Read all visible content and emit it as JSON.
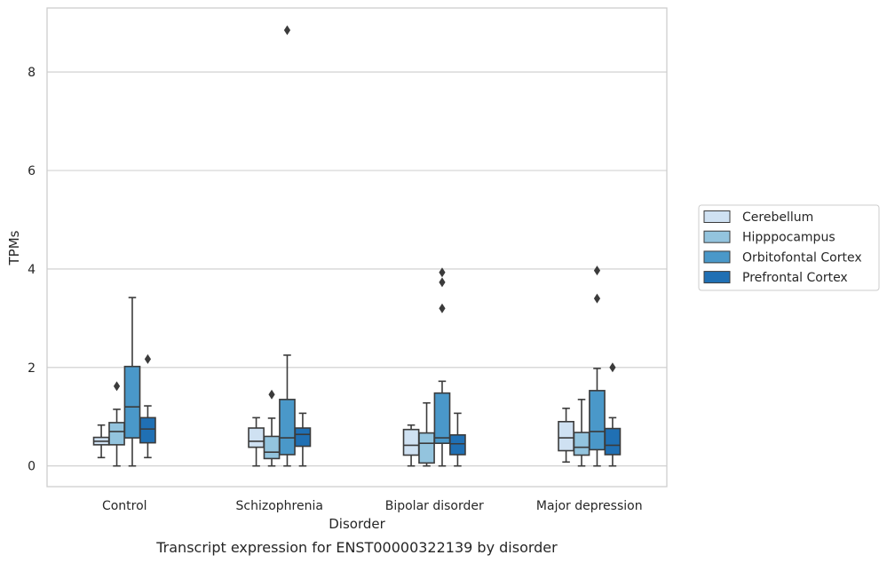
{
  "chart_data": {
    "type": "boxplot",
    "title": "",
    "caption": "Transcript expression for ENST00000322139 by disorder",
    "xlabel": "Disorder",
    "ylabel": "TPMs",
    "ylim": [
      -0.42,
      9.3
    ],
    "yticks": [
      0,
      2,
      4,
      6,
      8
    ],
    "grid": "horizontal",
    "legend_position": "right",
    "categories": [
      "Control",
      "Schizophrenia",
      "Bipolar disorder",
      "Major depression"
    ],
    "series": [
      {
        "name": "Cerebellum",
        "color": "#cfe1f2",
        "boxes": [
          {
            "whisker_low": 0.17,
            "q1": 0.43,
            "median": 0.5,
            "q3": 0.58,
            "whisker_high": 0.83,
            "outliers": []
          },
          {
            "whisker_low": 0.0,
            "q1": 0.38,
            "median": 0.5,
            "q3": 0.77,
            "whisker_high": 0.98,
            "outliers": []
          },
          {
            "whisker_low": 0.0,
            "q1": 0.22,
            "median": 0.42,
            "q3": 0.74,
            "whisker_high": 0.83,
            "outliers": []
          },
          {
            "whisker_low": 0.08,
            "q1": 0.31,
            "median": 0.57,
            "q3": 0.9,
            "whisker_high": 1.17,
            "outliers": []
          }
        ]
      },
      {
        "name": "Hipppocampus",
        "color": "#93c4de",
        "boxes": [
          {
            "whisker_low": 0.0,
            "q1": 0.43,
            "median": 0.7,
            "q3": 0.88,
            "whisker_high": 1.15,
            "outliers": [
              1.62
            ]
          },
          {
            "whisker_low": 0.0,
            "q1": 0.15,
            "median": 0.28,
            "q3": 0.6,
            "whisker_high": 0.97,
            "outliers": [
              1.45
            ]
          },
          {
            "whisker_low": 0.0,
            "q1": 0.06,
            "median": 0.46,
            "q3": 0.67,
            "whisker_high": 1.28,
            "outliers": []
          },
          {
            "whisker_low": 0.0,
            "q1": 0.22,
            "median": 0.38,
            "q3": 0.68,
            "whisker_high": 1.35,
            "outliers": []
          }
        ]
      },
      {
        "name": "Orbitofontal Cortex",
        "color": "#4a98c9",
        "boxes": [
          {
            "whisker_low": 0.0,
            "q1": 0.57,
            "median": 1.2,
            "q3": 2.02,
            "whisker_high": 3.42,
            "outliers": []
          },
          {
            "whisker_low": 0.0,
            "q1": 0.23,
            "median": 0.57,
            "q3": 1.35,
            "whisker_high": 2.25,
            "outliers": [
              8.85
            ]
          },
          {
            "whisker_low": 0.0,
            "q1": 0.46,
            "median": 0.57,
            "q3": 1.48,
            "whisker_high": 1.72,
            "outliers": [
              3.2,
              3.73,
              3.93
            ]
          },
          {
            "whisker_low": 0.0,
            "q1": 0.33,
            "median": 0.7,
            "q3": 1.53,
            "whisker_high": 1.98,
            "outliers": [
              3.4,
              3.97
            ]
          }
        ]
      },
      {
        "name": "Prefrontal Cortex",
        "color": "#2070b4",
        "boxes": [
          {
            "whisker_low": 0.17,
            "q1": 0.47,
            "median": 0.75,
            "q3": 0.98,
            "whisker_high": 1.22,
            "outliers": [
              2.17
            ]
          },
          {
            "whisker_low": 0.0,
            "q1": 0.4,
            "median": 0.64,
            "q3": 0.77,
            "whisker_high": 1.07,
            "outliers": []
          },
          {
            "whisker_low": 0.0,
            "q1": 0.23,
            "median": 0.45,
            "q3": 0.63,
            "whisker_high": 1.07,
            "outliers": []
          },
          {
            "whisker_low": 0.0,
            "q1": 0.23,
            "median": 0.42,
            "q3": 0.76,
            "whisker_high": 0.98,
            "outliers": [
              2.0
            ]
          }
        ]
      }
    ]
  }
}
